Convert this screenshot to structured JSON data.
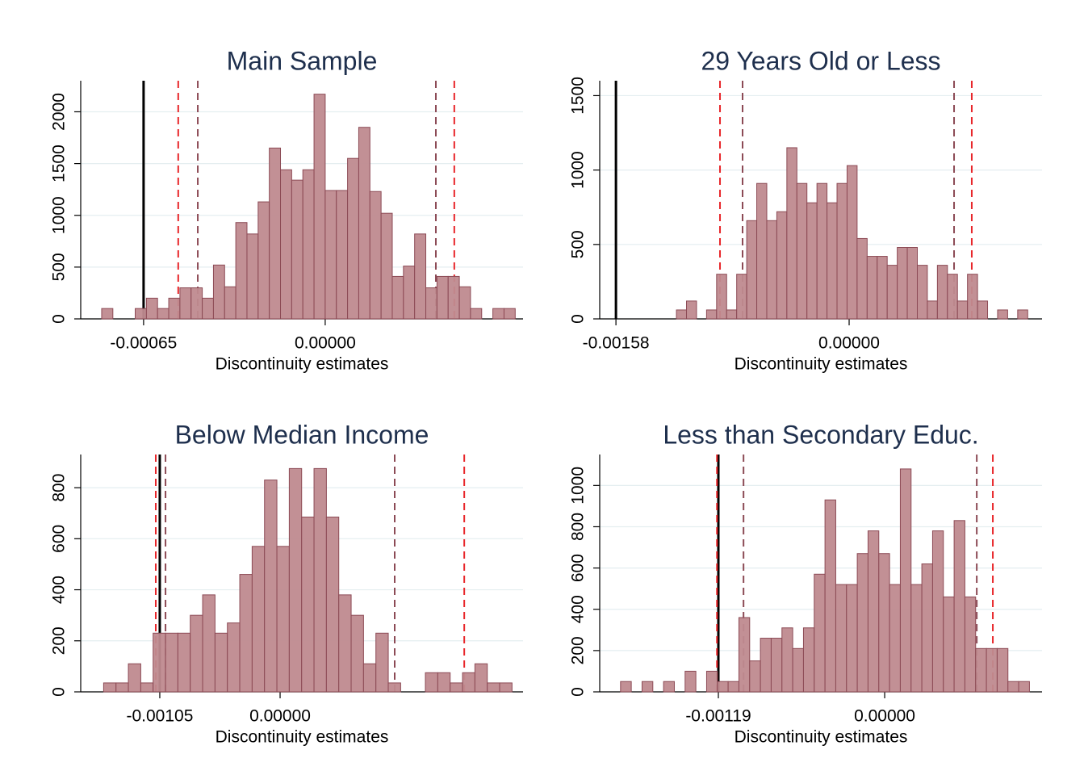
{
  "chart_data": [
    {
      "type": "histogram",
      "title": "Main Sample",
      "xlabel": "Discontinuity estimates",
      "bins": [
        -0.0008,
        -0.00076,
        -0.00072,
        -0.00068,
        -0.00064,
        -0.0006,
        -0.00056,
        -0.00052,
        -0.00048,
        -0.00044,
        -0.0004,
        -0.00036,
        -0.00032,
        -0.00028,
        -0.00024,
        -0.0002,
        -0.00016,
        -0.00012,
        -8e-05,
        -4e-05,
        0,
        4e-05,
        8e-05,
        0.00012,
        0.00016,
        0.0002,
        0.00024,
        0.00028,
        0.00032,
        0.00036,
        0.0004,
        0.00044,
        0.00048,
        0.00052,
        0.00056,
        0.0006,
        0.00064,
        0.00068
      ],
      "values": [
        100,
        0,
        0,
        100,
        200,
        100,
        200,
        300,
        300,
        200,
        520,
        310,
        930,
        820,
        1130,
        1650,
        1440,
        1340,
        1440,
        2170,
        1240,
        1240,
        1550,
        1850,
        1230,
        1020,
        410,
        510,
        820,
        300,
        410,
        410,
        310,
        100,
        0,
        100,
        100
      ],
      "color": "#bf8a8f",
      "edgecolor": "#8c4a55",
      "xlim": [
        -0.000875,
        0.000708
      ],
      "ylim": [
        0,
        2300
      ],
      "xticks": [
        {
          "value": -0.00065,
          "label": "-0.00065"
        },
        {
          "value": 0,
          "label": "0.00000"
        }
      ],
      "yticks": [
        0,
        500,
        1000,
        1500,
        2000
      ],
      "grid": true,
      "vlines": [
        {
          "value": -0.00065,
          "color": "#000000",
          "style": "solid"
        },
        {
          "value": -0.000526,
          "color": "#e8262a",
          "style": "dashed"
        },
        {
          "value": -0.000456,
          "color": "#8c4a55",
          "style": "dashed"
        },
        {
          "value": 0.000396,
          "color": "#8c4a55",
          "style": "dashed"
        },
        {
          "value": 0.000462,
          "color": "#e8262a",
          "style": "dashed"
        }
      ]
    },
    {
      "type": "histogram",
      "title": "29 Years Old or Less",
      "xlabel": "Discontinuity estimates",
      "bins": [
        -0.00117,
        -0.001102,
        -0.001034,
        -0.000966,
        -0.000898,
        -0.00083,
        -0.000762,
        -0.000694,
        -0.000626,
        -0.000558,
        -0.00049,
        -0.000422,
        -0.000354,
        -0.000286,
        -0.000218,
        -0.00015,
        -8.2e-05,
        -1.4e-05,
        5.4e-05,
        0.000122,
        0.00019,
        0.000258,
        0.000326,
        0.000394,
        0.000462,
        0.00053,
        0.000598,
        0.000666,
        0.000734,
        0.000802,
        0.00087,
        0.000938,
        0.001006,
        0.001074,
        0.001142,
        0.00121
      ],
      "values": [
        60,
        120,
        0,
        60,
        300,
        60,
        300,
        660,
        910,
        660,
        720,
        1150,
        910,
        780,
        910,
        780,
        910,
        1030,
        540,
        420,
        420,
        360,
        480,
        480,
        360,
        120,
        360,
        300,
        120,
        300,
        120,
        0,
        60,
        0,
        60
      ],
      "color": "#bf8a8f",
      "edgecolor": "#8c4a55",
      "xlim": [
        -0.00169,
        0.001307
      ],
      "ylim": [
        0,
        1600
      ],
      "xticks": [
        {
          "value": -0.00158,
          "label": "-0.00158"
        },
        {
          "value": 0,
          "label": "0.00000"
        }
      ],
      "yticks": [
        0,
        500,
        1000,
        1500
      ],
      "grid": true,
      "vlines": [
        {
          "value": -0.00158,
          "color": "#000000",
          "style": "solid"
        },
        {
          "value": -0.000875,
          "color": "#e8262a",
          "style": "dashed"
        },
        {
          "value": -0.000722,
          "color": "#8c4a55",
          "style": "dashed"
        },
        {
          "value": 0.000711,
          "color": "#8c4a55",
          "style": "dashed"
        },
        {
          "value": 0.000831,
          "color": "#e8262a",
          "style": "dashed"
        }
      ]
    },
    {
      "type": "histogram",
      "title": "Below Median Income",
      "xlabel": "Discontinuity estimates",
      "bins": [
        -0.00154,
        -0.001432,
        -0.001324,
        -0.001216,
        -0.001108,
        -0.001,
        -0.000892,
        -0.000784,
        -0.000676,
        -0.000568,
        -0.00046,
        -0.000352,
        -0.000244,
        -0.000136,
        -2.8e-05,
        8e-05,
        0.000188,
        0.000296,
        0.000404,
        0.000512,
        0.00062,
        0.000728,
        0.000836,
        0.000944,
        0.001052,
        0.00116,
        0.001268,
        0.001376,
        0.001484,
        0.001592,
        0.0017,
        0.001808,
        0.001916,
        0.002024
      ],
      "values": [
        35,
        35,
        110,
        35,
        230,
        230,
        230,
        300,
        380,
        230,
        270,
        460,
        570,
        830,
        570,
        875,
        685,
        875,
        685,
        380,
        300,
        110,
        230,
        35,
        0,
        0,
        75,
        75,
        35,
        75,
        110,
        35,
        35
      ],
      "color": "#bf8a8f",
      "edgecolor": "#8c4a55",
      "xlim": [
        -0.00174,
        0.00212
      ],
      "ylim": [
        0,
        930
      ],
      "xticks": [
        {
          "value": -0.00105,
          "label": "-0.00105"
        },
        {
          "value": 0,
          "label": "0.00000"
        }
      ],
      "yticks": [
        0,
        200,
        400,
        600,
        800
      ],
      "grid": true,
      "vlines": [
        {
          "value": -0.00105,
          "color": "#000000",
          "style": "solid"
        },
        {
          "value": -0.001085,
          "color": "#e8262a",
          "style": "dashed"
        },
        {
          "value": -0.001,
          "color": "#8c4a55",
          "style": "dashed"
        },
        {
          "value": 0.001,
          "color": "#8c4a55",
          "style": "dashed"
        },
        {
          "value": 0.001607,
          "color": "#e8262a",
          "style": "dashed"
        }
      ]
    },
    {
      "type": "histogram",
      "title": "Less than Secondary Educ.",
      "xlabel": "Discontinuity estimates",
      "bins": [
        -0.00189,
        -0.001813,
        -0.001736,
        -0.001659,
        -0.001582,
        -0.001505,
        -0.001428,
        -0.001351,
        -0.001274,
        -0.001197,
        -0.00112,
        -0.001043,
        -0.000966,
        -0.000889,
        -0.000812,
        -0.000735,
        -0.000658,
        -0.000581,
        -0.000504,
        -0.000427,
        -0.00035,
        -0.000273,
        -0.000196,
        -0.000119,
        -4.2e-05,
        3.5e-05,
        0.000112,
        0.000189,
        0.000266,
        0.000343,
        0.00042,
        0.000497,
        0.000574,
        0.000651,
        0.000728,
        0.000805,
        0.000882,
        0.000959,
        0.001036
      ],
      "values": [
        50,
        0,
        50,
        0,
        50,
        0,
        100,
        0,
        100,
        50,
        50,
        360,
        150,
        260,
        260,
        310,
        210,
        310,
        570,
        930,
        520,
        520,
        670,
        780,
        670,
        520,
        1080,
        520,
        620,
        780,
        460,
        830,
        460,
        210,
        210,
        210,
        50,
        50
      ],
      "color": "#bf8a8f",
      "edgecolor": "#8c4a55",
      "xlim": [
        -0.002039,
        0.001126
      ],
      "ylim": [
        0,
        1150
      ],
      "xticks": [
        {
          "value": -0.00119,
          "label": "-0.00119"
        },
        {
          "value": 0,
          "label": "0.00000"
        }
      ],
      "yticks": [
        0,
        200,
        400,
        600,
        800,
        1000
      ],
      "grid": true,
      "vlines": [
        {
          "value": -0.00119,
          "color": "#000000",
          "style": "solid"
        },
        {
          "value": -0.0012,
          "color": "#e8262a",
          "style": "dashed"
        },
        {
          "value": -0.00101,
          "color": "#8c4a55",
          "style": "dashed"
        },
        {
          "value": 0.000659,
          "color": "#8c4a55",
          "style": "dashed"
        },
        {
          "value": 0.000774,
          "color": "#e8262a",
          "style": "dashed"
        }
      ]
    }
  ]
}
